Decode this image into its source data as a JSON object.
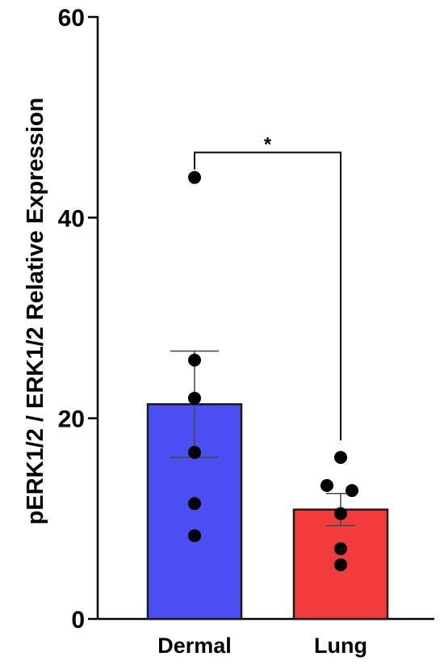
{
  "chart_data": {
    "type": "bar",
    "title": "",
    "xlabel": "",
    "ylabel": "pERK1/2 / ERK1/2 Relative Expression",
    "ylim": [
      0,
      60
    ],
    "yticks": [
      0,
      20,
      40,
      60
    ],
    "grid": false,
    "categories": [
      "Dermal",
      "Lung"
    ],
    "values": [
      21.4,
      10.9
    ],
    "error": [
      {
        "low": 16.1,
        "high": 26.7
      },
      {
        "low": 9.3,
        "high": 12.5
      }
    ],
    "bar_colors": [
      "#4b4ef0",
      "#f23c3c"
    ],
    "points": [
      [
        44.0,
        25.8,
        22.0,
        16.6,
        11.5,
        8.3
      ],
      [
        16.1,
        13.3,
        12.8,
        10.5,
        7.0,
        5.4
      ]
    ],
    "significance": {
      "pair": [
        0,
        1
      ],
      "y": 46.5,
      "label": "*"
    }
  }
}
